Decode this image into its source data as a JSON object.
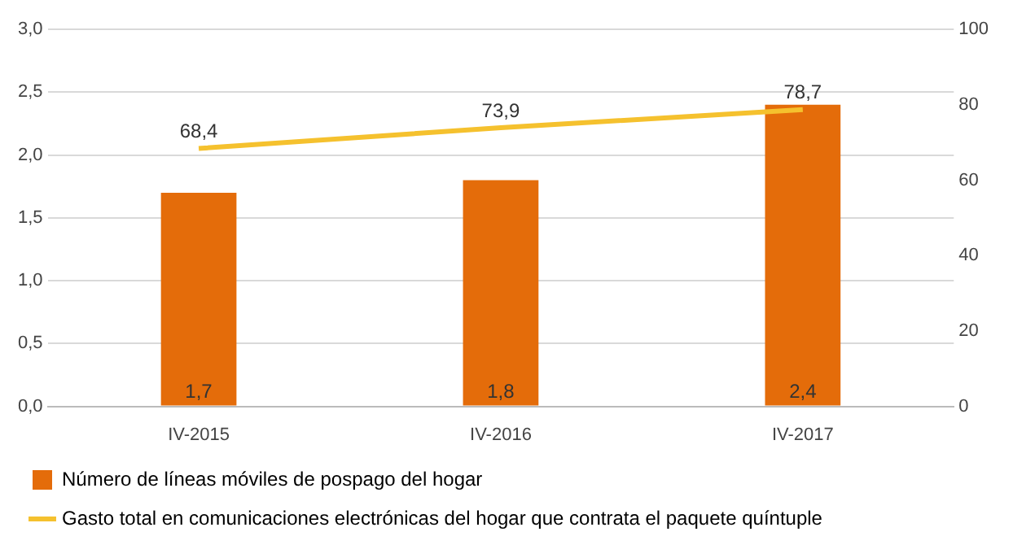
{
  "chart_data": {
    "type": "bar",
    "categories": [
      "IV-2015",
      "IV-2016",
      "IV-2017"
    ],
    "series": [
      {
        "name": "Número de líneas móviles de pospago del hogar",
        "color": "#e46c0a",
        "values": [
          1.7,
          1.8,
          2.4
        ],
        "value_labels": [
          "1,7",
          "1,8",
          "2,4"
        ]
      },
      {
        "name": "Gasto total en comunicaciones electrónicas del hogar que contrata el paquete quíntuple",
        "type": "line",
        "axis": "y2",
        "color": "#f5c12e",
        "values": [
          68.4,
          73.9,
          78.7
        ],
        "value_labels": [
          "68,4",
          "73,9",
          "78,7"
        ]
      }
    ],
    "ylim": [
      0,
      3
    ],
    "yticks": [
      {
        "value": 0,
        "label": "0,0"
      },
      {
        "value": 0.5,
        "label": "0,5"
      },
      {
        "value": 1,
        "label": "1,0"
      },
      {
        "value": 1.5,
        "label": "1,5"
      },
      {
        "value": 2,
        "label": "2,0"
      },
      {
        "value": 2.5,
        "label": "2,5"
      },
      {
        "value": 3,
        "label": "3,0"
      }
    ],
    "y2lim": [
      0,
      100
    ],
    "y2ticks": [
      0,
      20,
      40,
      60,
      80,
      100
    ],
    "grid": "y",
    "legend": "bottom",
    "marker": "none"
  }
}
